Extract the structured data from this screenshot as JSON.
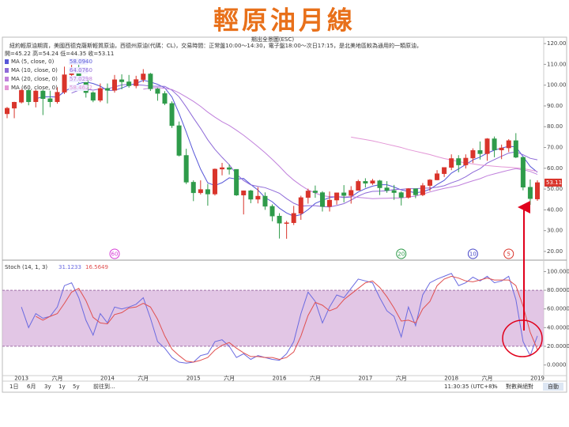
{
  "title": "輕原油月線",
  "header": {
    "overview": "期出全景圖(ESC)",
    "description": "紐約輕原油期貨，美國西德克薩斯輕質原油，西德州原油(代碼：CL)，交易時間：正常盤10:00～14:30，電子盤18:00～次日17:15，是北美地區較為通用的一類原油，",
    "ohlc": "開=45.22 高=54.24 低=44.35 收=53.11"
  },
  "toolbar": {
    "left": [
      "1日",
      "6月",
      "3y",
      "1y",
      "5y",
      "前往到..."
    ],
    "time": "11:30:35 (UTC+8)",
    "percent": "%",
    "scale": "對數與絕對",
    "auto": "自動"
  },
  "chart_data": [
    {
      "type": "candlestick",
      "up_color": "#d9342b",
      "down_color": "#2e9b4a",
      "categories": [
        null,
        null,
        "2013",
        null,
        null,
        null,
        null,
        "六月",
        null,
        null,
        null,
        null,
        null,
        null,
        "2014",
        null,
        null,
        null,
        null,
        "六月",
        null,
        null,
        null,
        null,
        null,
        null,
        "2015",
        null,
        null,
        null,
        null,
        "六月",
        null,
        null,
        null,
        null,
        null,
        null,
        "2016",
        null,
        null,
        null,
        null,
        "六月",
        null,
        null,
        null,
        null,
        null,
        null,
        "2017",
        null,
        null,
        null,
        null,
        "六月",
        null,
        null,
        null,
        null,
        null,
        null,
        "2018",
        null,
        null,
        null,
        null,
        "六月",
        null,
        null,
        null,
        null,
        null,
        null,
        "2019"
      ],
      "open": [
        86.2,
        88.9,
        91.8,
        97.5,
        92.0,
        97.2,
        93.5,
        92.0,
        96.6,
        105.0,
        107.6,
        102.3,
        96.4,
        92.7,
        98.4,
        97.5,
        102.6,
        101.6,
        99.7,
        102.7,
        105.4,
        98.2,
        96.0,
        91.2,
        80.5,
        66.2,
        53.3,
        48.2,
        49.8,
        47.6,
        59.6,
        60.3,
        59.5,
        47.1,
        49.2,
        45.1,
        46.6,
        41.7,
        37.0,
        33.6,
        33.8,
        38.3,
        45.9,
        49.1,
        48.3,
        41.6,
        44.7,
        48.2,
        46.9,
        49.4,
        53.7,
        52.8,
        54.0,
        50.6,
        49.3,
        48.3,
        46.0,
        50.2,
        47.2,
        51.7,
        54.4,
        57.4,
        60.4,
        64.7,
        61.6,
        64.9,
        68.6,
        67.0,
        74.2,
        68.8,
        69.8,
        73.3,
        65.3,
        50.9,
        45.22
      ],
      "high": [
        89.5,
        92.0,
        98.2,
        98.0,
        97.8,
        97.8,
        97.3,
        99.0,
        108.9,
        112.2,
        110.7,
        103.2,
        97.0,
        100.8,
        100.8,
        104.9,
        105.2,
        104.9,
        104.5,
        107.7,
        105.9,
        98.7,
        97.1,
        92.2,
        82.5,
        69.4,
        54.2,
        54.2,
        52.5,
        59.9,
        62.6,
        61.9,
        59.5,
        49.3,
        49.6,
        50.9,
        48.4,
        42.6,
        38.4,
        34.7,
        41.9,
        46.8,
        50.2,
        51.7,
        49.0,
        48.8,
        48.3,
        51.9,
        51.4,
        54.5,
        55.2,
        54.9,
        54.4,
        53.8,
        52.0,
        48.9,
        50.4,
        50.2,
        52.9,
        54.8,
        59.1,
        60.5,
        66.7,
        66.3,
        66.7,
        69.6,
        72.9,
        74.5,
        75.3,
        71.4,
        74.0,
        76.9,
        65.4,
        54.6,
        54.24
      ],
      "low": [
        84.1,
        84.1,
        91.2,
        90.3,
        89.3,
        85.6,
        89.4,
        91.1,
        95.7,
        102.2,
        101.1,
        94.0,
        91.8,
        91.8,
        91.2,
        96.4,
        98.0,
        98.8,
        98.5,
        101.4,
        97.2,
        92.5,
        90.4,
        79.4,
        65.7,
        52.4,
        44.2,
        47.4,
        42.0,
        46.9,
        56.6,
        57.0,
        46.7,
        37.8,
        43.2,
        43.1,
        40.0,
        34.5,
        26.2,
        26.1,
        32.7,
        35.2,
        43.0,
        45.8,
        39.2,
        39.2,
        42.5,
        43.6,
        43.0,
        49.3,
        50.7,
        52.0,
        47.1,
        48.2,
        44.8,
        42.1,
        45.4,
        45.6,
        46.6,
        49.1,
        54.2,
        55.8,
        59.1,
        58.1,
        59.9,
        62.5,
        64.2,
        63.6,
        65.3,
        64.4,
        67.8,
        64.9,
        49.4,
        42.4,
        44.35
      ],
      "close": [
        88.9,
        91.8,
        97.5,
        92.0,
        97.2,
        93.5,
        92.0,
        96.6,
        105.0,
        107.6,
        102.3,
        96.4,
        92.7,
        98.4,
        97.5,
        102.6,
        101.6,
        99.7,
        102.7,
        105.4,
        98.2,
        96.0,
        91.2,
        80.5,
        66.2,
        53.3,
        48.2,
        49.8,
        47.6,
        59.6,
        60.3,
        59.5,
        47.1,
        49.2,
        45.1,
        46.6,
        41.7,
        37.0,
        33.6,
        33.8,
        38.3,
        45.9,
        49.1,
        48.3,
        41.6,
        44.7,
        48.2,
        46.9,
        49.4,
        53.7,
        52.8,
        54.0,
        50.6,
        49.3,
        48.3,
        46.0,
        50.2,
        47.2,
        51.7,
        54.4,
        57.4,
        60.4,
        64.7,
        61.6,
        64.9,
        68.6,
        67.0,
        74.2,
        68.8,
        69.8,
        73.3,
        65.3,
        50.9,
        45.4,
        53.11
      ],
      "series": [
        {
          "name": "MA (5, close, 0)",
          "legend_value": "58.0940",
          "color": "#5656d8",
          "values": [
            null,
            null,
            null,
            null,
            93.5,
            94.4,
            94.4,
            94.3,
            96.9,
            98.9,
            100.7,
            101.6,
            100.8,
            99.5,
            97.5,
            97.5,
            98.6,
            100.0,
            100.8,
            102.4,
            101.5,
            100.4,
            98.7,
            94.3,
            86.4,
            77.4,
            67.9,
            59.6,
            53.0,
            51.7,
            53.1,
            55.4,
            54.8,
            55.1,
            52.2,
            49.5,
            45.9,
            43.9,
            40.8,
            38.5,
            36.9,
            37.7,
            40.1,
            43.1,
            44.6,
            45.9,
            46.4,
            45.9,
            46.2,
            48.6,
            50.2,
            51.4,
            52.1,
            52.1,
            51.0,
            49.6,
            48.9,
            48.2,
            48.7,
            49.9,
            52.2,
            54.2,
            57.7,
            59.7,
            61.8,
            64.0,
            65.4,
            67.3,
            68.7,
            69.7,
            70.6,
            70.3,
            65.6,
            60.9,
            58.094
          ]
        },
        {
          "name": "MA (10, close, 0)",
          "legend_value": "64.0760",
          "color": "#8e6ad8",
          "values": [
            null,
            null,
            null,
            null,
            null,
            null,
            null,
            null,
            null,
            96.2,
            97.6,
            98.0,
            97.6,
            98.2,
            98.2,
            99.1,
            100.1,
            100.4,
            100.2,
            100.0,
            99.5,
            99.5,
            99.4,
            97.6,
            94.4,
            89.5,
            84.2,
            79.2,
            73.7,
            69.1,
            65.3,
            61.7,
            57.2,
            54.1,
            52.0,
            51.3,
            50.7,
            49.4,
            48.0,
            45.4,
            43.2,
            41.8,
            42.0,
            42.0,
            41.6,
            41.4,
            42.1,
            43.0,
            44.7,
            46.6,
            48.1,
            48.9,
            49.0,
            49.2,
            49.8,
            49.9,
            50.2,
            50.2,
            50.4,
            50.5,
            50.9,
            51.6,
            53.0,
            54.2,
            55.9,
            58.1,
            59.8,
            62.5,
            64.2,
            65.8,
            67.3,
            67.9,
            66.5,
            64.8,
            64.076
          ]
        },
        {
          "name": "MA (20, close, 0)",
          "legend_value": "57.0298",
          "color": "#c080dc",
          "values": [
            null,
            null,
            null,
            null,
            null,
            null,
            null,
            null,
            null,
            null,
            null,
            null,
            null,
            null,
            null,
            null,
            null,
            null,
            null,
            98.1,
            98.6,
            98.8,
            98.5,
            97.9,
            96.3,
            94.3,
            92.2,
            89.8,
            87.0,
            84.6,
            82.4,
            80.6,
            78.3,
            75.9,
            73.2,
            70.4,
            67.5,
            64.3,
            60.9,
            57.3,
            54.3,
            51.8,
            49.6,
            48.1,
            46.8,
            46.4,
            46.4,
            46.2,
            46.4,
            46.0,
            45.7,
            45.4,
            45.5,
            45.6,
            45.7,
            45.7,
            46.2,
            46.6,
            47.6,
            48.6,
            49.5,
            50.3,
            51.0,
            51.7,
            52.9,
            54.0,
            55.0,
            56.4,
            57.3,
            58.2,
            59.1,
            59.8,
            59.3,
            58.5,
            57.03
          ]
        },
        {
          "name": "MA (60, close, 0)",
          "legend_value": "58.4622",
          "color": "#e396d6",
          "values": [
            null,
            null,
            null,
            null,
            null,
            null,
            null,
            null,
            null,
            null,
            null,
            null,
            null,
            null,
            null,
            null,
            null,
            null,
            null,
            null,
            null,
            null,
            null,
            null,
            null,
            null,
            null,
            null,
            null,
            null,
            null,
            null,
            null,
            null,
            null,
            null,
            null,
            null,
            null,
            null,
            null,
            null,
            null,
            null,
            null,
            null,
            null,
            null,
            75.0,
            74.4,
            73.8,
            73.2,
            72.4,
            71.6,
            70.8,
            70.0,
            69.0,
            68.2,
            67.4,
            66.6,
            65.6,
            64.7,
            64.0,
            63.2,
            62.6,
            62.1,
            61.6,
            61.3,
            61.0,
            60.7,
            60.5,
            60.2,
            59.8,
            59.2,
            58.46
          ]
        }
      ],
      "markers": [
        null,
        null,
        null,
        null,
        null,
        null,
        null,
        null,
        null,
        null,
        null,
        null,
        null,
        null,
        null,
        {
          "label": "60",
          "color": "#d63ad6"
        },
        null,
        null,
        null,
        null,
        null,
        null,
        null,
        null,
        null,
        null,
        null,
        null,
        null,
        null,
        null,
        null,
        null,
        null,
        null,
        null,
        null,
        null,
        null,
        null,
        null,
        null,
        null,
        null,
        null,
        null,
        null,
        null,
        null,
        null,
        null,
        null,
        null,
        null,
        null,
        {
          "label": "20",
          "color": "#2e9b4a"
        },
        null,
        null,
        null,
        null,
        null,
        null,
        null,
        null,
        null,
        {
          "label": "10",
          "color": "#4848c8"
        },
        null,
        null,
        null,
        null,
        {
          "label": "5",
          "color": "#d9342b"
        },
        null,
        null,
        null,
        null
      ],
      "ylim": [
        15.8,
        122.7
      ],
      "yticks": [
        {
          "value": 120,
          "label": "120.00"
        },
        {
          "value": 110,
          "label": "110.00"
        },
        {
          "value": 100,
          "label": "100.00"
        },
        {
          "value": 90,
          "label": "90.00"
        },
        {
          "value": 80,
          "label": "80.00"
        },
        {
          "value": 70,
          "label": "70.00"
        },
        {
          "value": 60,
          "label": "60.00"
        },
        {
          "value": 50,
          "label": "50.00"
        },
        {
          "value": 40,
          "label": "40.00"
        },
        {
          "value": 30,
          "label": "30.00"
        },
        {
          "value": 20,
          "label": "20.00"
        }
      ]
    },
    {
      "type": "line",
      "name": "Stoch (14, 1, 3)",
      "band": [
        20,
        80
      ],
      "band_color": "#d8b3dc",
      "series": [
        {
          "color": "#6a6ae0",
          "values": [
            null,
            null,
            62,
            40,
            55,
            50,
            52,
            62,
            85,
            88,
            72,
            48,
            32,
            55,
            45,
            62,
            60,
            62,
            65,
            72,
            50,
            25,
            18,
            8,
            3,
            2,
            3,
            10,
            12,
            25,
            27,
            20,
            8,
            12,
            6,
            10,
            8,
            6,
            5,
            12,
            25,
            55,
            78,
            68,
            45,
            62,
            75,
            72,
            82,
            92,
            90,
            88,
            72,
            58,
            52,
            30,
            62,
            42,
            75,
            88,
            92,
            95,
            98,
            85,
            88,
            94,
            90,
            95,
            88,
            90,
            95,
            70,
            25,
            10,
            31.1233
          ]
        },
        {
          "color": "#e05050",
          "values": [
            null,
            null,
            null,
            null,
            52,
            48,
            52,
            55,
            66,
            78,
            82,
            69,
            51,
            45,
            44,
            54,
            56,
            61,
            62,
            66,
            62,
            49,
            31,
            17,
            10,
            4,
            3,
            5,
            8,
            16,
            21,
            24,
            18,
            13,
            9,
            9,
            8,
            8,
            6,
            8,
            14,
            31,
            53,
            67,
            64,
            58,
            61,
            70,
            76,
            82,
            88,
            90,
            83,
            73,
            61,
            47,
            48,
            45,
            60,
            68,
            85,
            92,
            95,
            93,
            90,
            89,
            91,
            93,
            91,
            91,
            91,
            85,
            63,
            35,
            16.5649
          ]
        }
      ],
      "ylim": [
        -11.4,
        111.4
      ],
      "yticks": [
        {
          "value": 100,
          "label": "100.0000"
        },
        {
          "value": 80,
          "label": "80.0000"
        },
        {
          "value": 60,
          "label": "60.0000"
        },
        {
          "value": 40,
          "label": "40.0000"
        },
        {
          "value": 20,
          "label": "20.0000"
        },
        {
          "value": 0,
          "label": "0.0000"
        }
      ]
    }
  ]
}
